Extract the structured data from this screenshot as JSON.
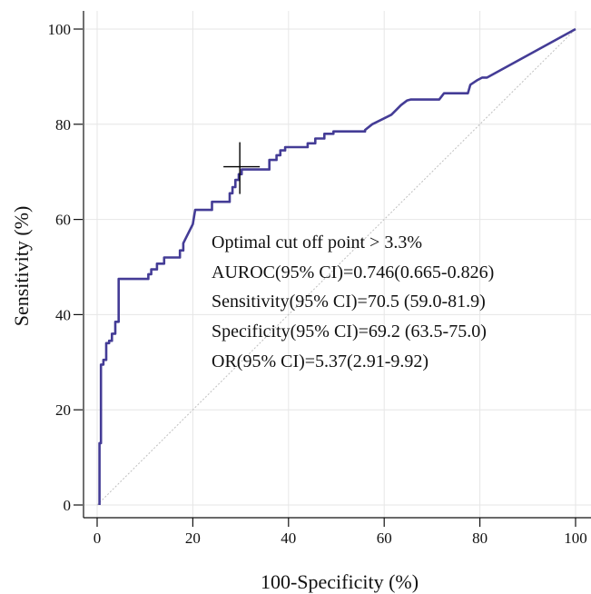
{
  "chart_data": {
    "type": "line",
    "xlabel": "100-Specificity (%)",
    "ylabel": "Sensitivity (%)",
    "xlim": [
      0,
      100
    ],
    "ylim": [
      0,
      100
    ],
    "x_ticks": [
      "0",
      "20",
      "40",
      "60",
      "80",
      "100"
    ],
    "y_ticks": [
      "0",
      "20",
      "40",
      "60",
      "80",
      "100"
    ],
    "grid": true,
    "legend": "none",
    "colors": {
      "curve": "#443c96",
      "diagonal": "#bfbfbf",
      "grid": "#e6e6e6",
      "marker": "#000000"
    },
    "series": [
      {
        "x": [
          0.5,
          0.5,
          0.8,
          0.8,
          1.3,
          1.3,
          1.9,
          1.9,
          2.5,
          2.5,
          3.1,
          3.1,
          3.8,
          3.8,
          4.5,
          4.5,
          10.7,
          10.7,
          11.3,
          11.3,
          12.5,
          12.5,
          14.0,
          14.0,
          17.3,
          17.3,
          18.0,
          18.0,
          20.0,
          20.5,
          20.5,
          24.0,
          24.0,
          27.7,
          27.7,
          28.3,
          28.3,
          28.9,
          28.9,
          29.6,
          29.6,
          30.2,
          30.2,
          30.8,
          30.8,
          36.0,
          36.0,
          37.5,
          37.5,
          38.3,
          38.3,
          39.3,
          39.3,
          44.0,
          44.0,
          45.6,
          45.6,
          47.5,
          47.5,
          49.4,
          49.4,
          56.0,
          56.0,
          57.5,
          59.5,
          61.5,
          62.5,
          63.5,
          64.8,
          65.5,
          71.5,
          72.5,
          77.5,
          78.0,
          79.5,
          80.5,
          81.5,
          100
        ],
        "y": [
          0,
          13.0,
          13.0,
          29.5,
          29.5,
          30.5,
          30.5,
          34.0,
          34.0,
          34.5,
          34.5,
          36.0,
          36.0,
          38.5,
          38.5,
          47.5,
          47.5,
          48.5,
          48.5,
          49.5,
          49.5,
          50.7,
          50.7,
          52.0,
          52.0,
          53.5,
          53.5,
          55.0,
          59.0,
          62.0,
          62.0,
          62.0,
          63.7,
          63.7,
          65.5,
          65.5,
          66.8,
          66.8,
          68.3,
          68.3,
          69.5,
          69.5,
          70.5,
          70.5,
          70.5,
          70.5,
          72.5,
          72.5,
          73.5,
          73.5,
          74.5,
          74.5,
          75.2,
          75.2,
          76.0,
          76.0,
          77.0,
          77.0,
          78.0,
          78.0,
          78.5,
          78.5,
          78.8,
          80.0,
          81.0,
          82.0,
          83.0,
          84.0,
          85.0,
          85.2,
          85.2,
          86.5,
          86.5,
          88.3,
          89.3,
          89.8,
          89.8,
          100
        ]
      }
    ],
    "optimal_point": {
      "x": 30.2,
      "y": 70.5
    },
    "annotations": [
      "Optimal cut off point > 3.3%",
      "AUROC(95% CI)=0.746(0.665-0.826)",
      "Sensitivity(95% CI)=70.5 (59.0-81.9)",
      "Specificity(95% CI)=69.2 (63.5-75.0)",
      "OR(95% CI)=5.37(2.91-9.92)"
    ]
  }
}
